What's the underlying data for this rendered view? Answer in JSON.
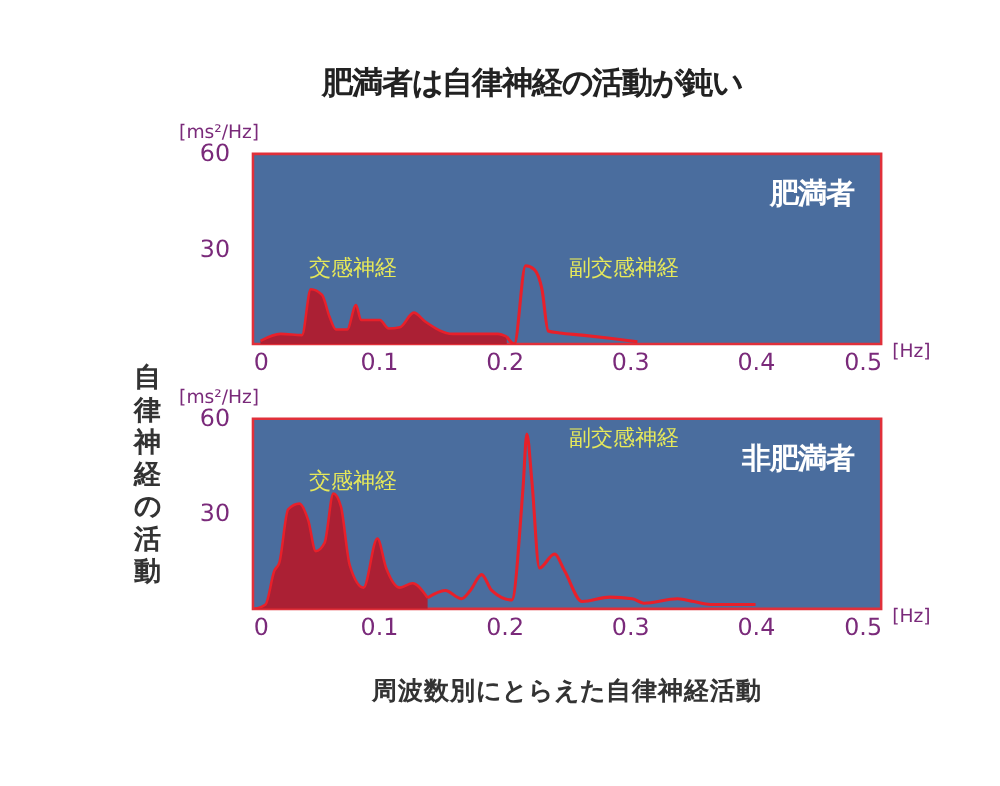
{
  "chart_data": [
    {
      "type": "area",
      "title": "肥満者は自律神経の活動が鈍い",
      "xlabel": "[Hz]",
      "ylabel": "[ms²/Hz]",
      "xlim": [
        0,
        0.5
      ],
      "ylim": [
        0,
        60
      ],
      "xticks": [
        0,
        0.1,
        0.2,
        0.3,
        0.4,
        0.5
      ],
      "yticks": [
        30,
        60
      ],
      "series": [
        {
          "color": "#b01c2e",
          "x": [
            0.006,
            0.022,
            0.039,
            0.046,
            0.055,
            0.061,
            0.066,
            0.075,
            0.082,
            0.086,
            0.101,
            0.108,
            0.117,
            0.128,
            0.137,
            0.159,
            0.195,
            0.202
          ],
          "values": [
            1,
            3.2,
            2.8,
            17.3,
            15.5,
            8.5,
            4.6,
            4.6,
            12.3,
            7.6,
            7.6,
            4.9,
            5.3,
            9.9,
            7.1,
            3.2,
            3.2,
            2.3
          ]
        },
        {
          "type": "line",
          "color": "#e8202a",
          "x": [
            0.202,
            0.208,
            0.217,
            0.224,
            0.23,
            0.235,
            0.244,
            0.262,
            0.284,
            0.306
          ],
          "values": [
            2.3,
            0,
            24.7,
            23.5,
            17.3,
            4.1,
            3.5,
            2.8,
            1.8,
            0.7
          ]
        }
      ],
      "annotations": [
        "肥満者",
        "交感神経",
        "副交感神経",
        "自律神経の活動"
      ]
    },
    {
      "type": "area",
      "xlabel": "[Hz]",
      "ylabel": "[ms²/Hz]",
      "xlim": [
        0,
        0.5
      ],
      "ylim": [
        0,
        60
      ],
      "xticks": [
        0,
        0.1,
        0.2,
        0.3,
        0.4,
        0.5
      ],
      "yticks": [
        30,
        60
      ],
      "series": [
        {
          "color": "#b01c2e",
          "x": [
            0.001,
            0.01,
            0.017,
            0.021,
            0.028,
            0.037,
            0.044,
            0.05,
            0.057,
            0.064,
            0.07,
            0.077,
            0.088,
            0.099,
            0.106,
            0.117,
            0.127,
            0.139
          ],
          "values": [
            0,
            1.4,
            12,
            14.6,
            31.4,
            33.2,
            27.9,
            18.2,
            20.8,
            36.4,
            32.3,
            13.8,
            6.7,
            22.2,
            12.9,
            6.7,
            8.1,
            3.5
          ]
        },
        {
          "type": "line",
          "color": "#e8202a",
          "x": [
            0.139,
            0.153,
            0.166,
            0.173,
            0.182,
            0.19,
            0.206,
            0.215,
            0.218,
            0.222,
            0.228,
            0.24,
            0.248,
            0.262,
            0.284,
            0.302,
            0.311,
            0.338,
            0.351,
            0.364,
            0.4
          ],
          "values": [
            3.5,
            5.8,
            3.2,
            5.8,
            10.8,
            5.8,
            2.8,
            38.5,
            55.2,
            40.2,
            12.9,
            17.3,
            12,
            2.3,
            3.7,
            3.2,
            1.8,
            3.2,
            2.3,
            1.4,
            1.4
          ]
        }
      ],
      "annotations": [
        "非肥満者",
        "交感神経",
        "副交感神経",
        "周波数別にとらえた自律神経活動"
      ]
    }
  ]
}
